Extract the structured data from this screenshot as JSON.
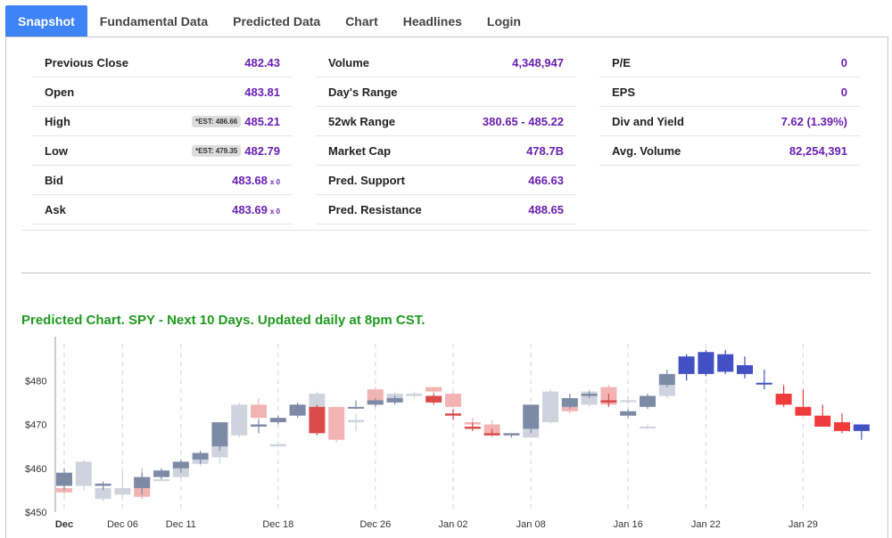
{
  "tabs": [
    {
      "label": "Snapshot",
      "active": true
    },
    {
      "label": "Fundamental Data",
      "active": false
    },
    {
      "label": "Predicted Data",
      "active": false
    },
    {
      "label": "Chart",
      "active": false
    },
    {
      "label": "Headlines",
      "active": false
    },
    {
      "label": "Login",
      "active": false
    }
  ],
  "stats": {
    "col1": [
      {
        "label": "Previous Close",
        "value": "482.43",
        "est": "",
        "size": ""
      },
      {
        "label": "Open",
        "value": "483.81",
        "est": "",
        "size": ""
      },
      {
        "label": "High",
        "value": "485.21",
        "est": "*EST: 486.66",
        "size": ""
      },
      {
        "label": "Low",
        "value": "482.79",
        "est": "*EST: 479.35",
        "size": ""
      },
      {
        "label": "Bid",
        "value": "483.68",
        "est": "",
        "size": "x 0"
      },
      {
        "label": "Ask",
        "value": "483.69",
        "est": "",
        "size": "x 0"
      }
    ],
    "col2": [
      {
        "label": "Volume",
        "value": "4,348,947"
      },
      {
        "label": "Day's Range",
        "value": ""
      },
      {
        "label": "52wk Range",
        "value": "380.65 - 485.22"
      },
      {
        "label": "Market Cap",
        "value": "478.7B"
      },
      {
        "label": "Pred. Support",
        "value": "466.63"
      },
      {
        "label": "Pred. Resistance",
        "value": "488.65"
      }
    ],
    "col3": [
      {
        "label": "P/E",
        "value": "0"
      },
      {
        "label": "EPS",
        "value": "0"
      },
      {
        "label": "Div and Yield",
        "value": "7.62 (1.39%)"
      },
      {
        "label": "Avg. Volume",
        "value": "82,254,391"
      }
    ]
  },
  "chart_title": "Predicted Chart. SPY - Next 10 Days. Updated daily at 8pm CST.",
  "chart_data": {
    "type": "candlestick",
    "ylim": [
      450,
      490
    ],
    "yticks": [
      450,
      460,
      470,
      480
    ],
    "ytick_labels": [
      "$450",
      "$460",
      "$470",
      "$480"
    ],
    "xtick_labels": [
      "Dec",
      "Dec 06",
      "Dec 11",
      "Dec 18",
      "Dec 26",
      "Jan 02",
      "Jan 08",
      "Jan 16",
      "Jan 22",
      "Jan 29"
    ],
    "xtick_index": [
      0.5,
      3.5,
      6.5,
      11.5,
      16.5,
      20.5,
      24.5,
      29.5,
      33.5,
      38.5
    ],
    "colors": {
      "actual_up": "#7d8aa6",
      "actual_down": "#d94a4a",
      "past_pred_up": "#cfd3de",
      "past_pred_down": "#f2b3b3",
      "pred_up": "#4150c2",
      "pred_down": "#ef3b3b"
    },
    "series": [
      {
        "name": "actual",
        "candles": [
          {
            "i": 0,
            "o": 456,
            "h": 460,
            "l": 455,
            "c": 459
          },
          {
            "i": 2,
            "o": 456,
            "h": 457,
            "l": 455,
            "c": 456.5
          },
          {
            "i": 4,
            "o": 455.5,
            "h": 459,
            "l": 454,
            "c": 458
          },
          {
            "i": 5,
            "o": 458,
            "h": 460,
            "l": 457.5,
            "c": 459.5
          },
          {
            "i": 6,
            "o": 460,
            "h": 462,
            "l": 459,
            "c": 461.5
          },
          {
            "i": 7,
            "o": 462,
            "h": 464,
            "l": 461,
            "c": 463.5
          },
          {
            "i": 8,
            "o": 465,
            "h": 470.5,
            "l": 464,
            "c": 470.5
          },
          {
            "i": 10,
            "o": 469.5,
            "h": 471,
            "l": 468,
            "c": 470
          },
          {
            "i": 11,
            "o": 470.5,
            "h": 472,
            "l": 470,
            "c": 471.5
          },
          {
            "i": 12,
            "o": 472,
            "h": 475,
            "l": 471.5,
            "c": 474.5
          },
          {
            "i": 13,
            "o": 474,
            "h": 474.5,
            "l": 467.5,
            "c": 468
          },
          {
            "i": 15,
            "o": 474,
            "h": 475.5,
            "l": 473.5,
            "c": 474
          },
          {
            "i": 16,
            "o": 474.5,
            "h": 476,
            "l": 474,
            "c": 475.5
          },
          {
            "i": 17,
            "o": 475,
            "h": 476.5,
            "l": 474.5,
            "c": 476
          },
          {
            "i": 19,
            "o": 476.5,
            "h": 477,
            "l": 474.5,
            "c": 475
          },
          {
            "i": 20,
            "o": 472.5,
            "h": 473.5,
            "l": 471,
            "c": 472
          },
          {
            "i": 21,
            "o": 469.5,
            "h": 470.5,
            "l": 468.5,
            "c": 469
          },
          {
            "i": 22,
            "o": 468,
            "h": 469,
            "l": 467.5,
            "c": 467.5
          },
          {
            "i": 23,
            "o": 467.5,
            "h": 468,
            "l": 467,
            "c": 468
          },
          {
            "i": 24,
            "o": 469,
            "h": 474.5,
            "l": 468,
            "c": 474.5
          },
          {
            "i": 26,
            "o": 474,
            "h": 477,
            "l": 473.5,
            "c": 476
          },
          {
            "i": 27,
            "o": 476.5,
            "h": 477.5,
            "l": 476,
            "c": 477
          },
          {
            "i": 28,
            "o": 475.5,
            "h": 477,
            "l": 474,
            "c": 475
          },
          {
            "i": 29,
            "o": 472,
            "h": 473.5,
            "l": 471.5,
            "c": 473
          },
          {
            "i": 30,
            "o": 474,
            "h": 477,
            "l": 473.5,
            "c": 476.5
          },
          {
            "i": 31,
            "o": 479,
            "h": 482.5,
            "l": 478.5,
            "c": 481.5
          }
        ]
      },
      {
        "name": "past_prediction",
        "candles": [
          {
            "i": 0,
            "o": 455.5,
            "h": 456,
            "l": 454,
            "c": 454.5
          },
          {
            "i": 1,
            "o": 456,
            "h": 462,
            "l": 455,
            "c": 461.5
          },
          {
            "i": 2,
            "o": 453,
            "h": 456,
            "l": 452.5,
            "c": 455.5
          },
          {
            "i": 3,
            "o": 454,
            "h": 459,
            "l": 453.5,
            "c": 455.5
          },
          {
            "i": 4,
            "o": 458,
            "h": 460,
            "l": 453,
            "c": 453.5
          },
          {
            "i": 5,
            "o": 457.5,
            "h": 460,
            "l": 457,
            "c": 457.5
          },
          {
            "i": 6,
            "o": 458,
            "h": 462,
            "l": 457.5,
            "c": 461
          },
          {
            "i": 7,
            "o": 461,
            "h": 463,
            "l": 460.5,
            "c": 462.5
          },
          {
            "i": 8,
            "o": 462.5,
            "h": 466,
            "l": 461,
            "c": 465.5
          },
          {
            "i": 9,
            "o": 467.5,
            "h": 475,
            "l": 467,
            "c": 474.5
          },
          {
            "i": 10,
            "o": 474.5,
            "h": 476,
            "l": 470,
            "c": 471.5
          },
          {
            "i": 11,
            "o": 465,
            "h": 466,
            "l": 465,
            "c": 465.5
          },
          {
            "i": 12,
            "o": 472.5,
            "h": 475,
            "l": 472,
            "c": 474.5
          },
          {
            "i": 13,
            "o": 473.5,
            "h": 477.5,
            "l": 473,
            "c": 477
          },
          {
            "i": 14,
            "o": 474,
            "h": 474,
            "l": 466,
            "c": 466.5
          },
          {
            "i": 15,
            "o": 470.5,
            "h": 472.5,
            "l": 468.5,
            "c": 471
          },
          {
            "i": 16,
            "o": 478,
            "h": 478.5,
            "l": 474.5,
            "c": 474.5
          },
          {
            "i": 17,
            "o": 475.5,
            "h": 477.5,
            "l": 475,
            "c": 477
          },
          {
            "i": 18,
            "o": 476.5,
            "h": 477.5,
            "l": 476,
            "c": 477
          },
          {
            "i": 19,
            "o": 478.5,
            "h": 478.5,
            "l": 477,
            "c": 477.5
          },
          {
            "i": 20,
            "o": 477,
            "h": 477.5,
            "l": 474,
            "c": 474
          },
          {
            "i": 21,
            "o": 470.5,
            "h": 471.5,
            "l": 469.5,
            "c": 470
          },
          {
            "i": 22,
            "o": 470,
            "h": 471,
            "l": 467,
            "c": 467.5
          },
          {
            "i": 24,
            "o": 467,
            "h": 470,
            "l": 467,
            "c": 469.5
          },
          {
            "i": 25,
            "o": 470.5,
            "h": 478,
            "l": 470,
            "c": 477.5
          },
          {
            "i": 26,
            "o": 474,
            "h": 474.5,
            "l": 472.5,
            "c": 473
          },
          {
            "i": 27,
            "o": 474.5,
            "h": 478,
            "l": 474,
            "c": 477.5
          },
          {
            "i": 28,
            "o": 478.5,
            "h": 479,
            "l": 474.5,
            "c": 474.5
          },
          {
            "i": 29,
            "o": 475.5,
            "h": 476.5,
            "l": 474.5,
            "c": 475.5
          },
          {
            "i": 30,
            "o": 469.5,
            "h": 470,
            "l": 469,
            "c": 469.5
          },
          {
            "i": 31,
            "o": 476.5,
            "h": 480,
            "l": 476,
            "c": 479.5
          }
        ]
      },
      {
        "name": "prediction",
        "candles": [
          {
            "i": 32,
            "o": 481.5,
            "h": 486,
            "l": 480,
            "c": 485.5
          },
          {
            "i": 33,
            "o": 481.5,
            "h": 487,
            "l": 481,
            "c": 486.5
          },
          {
            "i": 34,
            "o": 482,
            "h": 487,
            "l": 481.5,
            "c": 486
          },
          {
            "i": 35,
            "o": 481.5,
            "h": 485.5,
            "l": 480.5,
            "c": 483.5
          },
          {
            "i": 36,
            "o": 479.5,
            "h": 482.5,
            "l": 478,
            "c": 479.5
          },
          {
            "i": 37,
            "o": 477,
            "h": 479,
            "l": 474,
            "c": 474.5
          },
          {
            "i": 38,
            "o": 474,
            "h": 478,
            "l": 472,
            "c": 472
          },
          {
            "i": 39,
            "o": 472,
            "h": 474.5,
            "l": 469.5,
            "c": 469.5
          },
          {
            "i": 40,
            "o": 470.5,
            "h": 472.5,
            "l": 468,
            "c": 468.5
          },
          {
            "i": 41,
            "o": 468.5,
            "h": 470,
            "l": 466.5,
            "c": 470
          }
        ]
      }
    ]
  }
}
